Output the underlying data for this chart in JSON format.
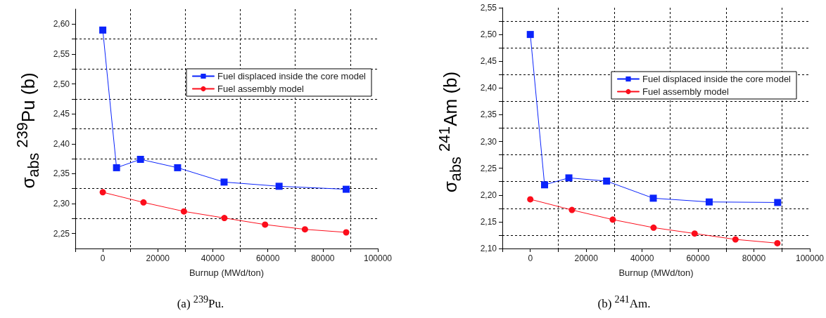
{
  "chart_data": [
    {
      "type": "line",
      "title": "(a) $^{239}$Pu.",
      "xlabel": "Burnup (MWd/ton)",
      "ylabel": "σ$_{abs}$ $^{239}$Pu (b)",
      "xlim": [
        -10000,
        100000
      ],
      "ylim": [
        2.225,
        2.625
      ],
      "xticks": [
        {
          "value": -10000,
          "label": null
        },
        0,
        {
          "value": 10000,
          "label": null
        },
        20000,
        {
          "value": 30000,
          "label": null
        },
        40000,
        {
          "value": 50000,
          "label": null
        },
        60000,
        {
          "value": 70000,
          "label": null
        },
        80000,
        {
          "value": 90000,
          "label": null
        },
        100000
      ],
      "yticks": [
        {
          "value": 2.25,
          "label": "2,25"
        },
        {
          "value": 2.275,
          "label": null
        },
        {
          "value": 2.3,
          "label": "2,30"
        },
        {
          "value": 2.325,
          "label": null
        },
        {
          "value": 2.35,
          "label": "2,35"
        },
        {
          "value": 2.375,
          "label": null
        },
        {
          "value": 2.4,
          "label": "2,40"
        },
        {
          "value": 2.425,
          "label": null
        },
        {
          "value": 2.45,
          "label": "2,45"
        },
        {
          "value": 2.475,
          "label": null
        },
        {
          "value": 2.5,
          "label": "2,50"
        },
        {
          "value": 2.525,
          "label": null
        },
        {
          "value": 2.55,
          "label": "2,55"
        },
        {
          "value": 2.575,
          "label": null
        },
        {
          "value": 2.6,
          "label": "2,60"
        }
      ],
      "grid": true,
      "legend": "top right",
      "series": [
        {
          "name": "Fuel displaced inside the core model",
          "color": "#0b24fb",
          "marker": "square",
          "x": [
            0,
            5000,
            13700,
            27200,
            44100,
            64100,
            88500
          ],
          "values": [
            2.59,
            2.36,
            2.374,
            2.36,
            2.336,
            2.329,
            2.324
          ]
        },
        {
          "name": "Fuel assembly model",
          "color": "#fc0d1b",
          "marker": "circle",
          "x": [
            0,
            14800,
            29500,
            44200,
            59000,
            73500,
            88500
          ],
          "values": [
            2.319,
            2.302,
            2.287,
            2.276,
            2.265,
            2.257,
            2.252
          ]
        }
      ]
    },
    {
      "type": "line",
      "title": "(b) $^{241}$Am.",
      "xlabel": "Burnup (MWd/ton)",
      "ylabel": "σ$_{abs}$ $^{241}$Am (b)",
      "xlim": [
        -10000,
        100000
      ],
      "ylim": [
        2.1,
        2.55
      ],
      "xticks": [
        {
          "value": -10000,
          "label": null
        },
        0,
        {
          "value": 10000,
          "label": null
        },
        20000,
        {
          "value": 30000,
          "label": null
        },
        40000,
        {
          "value": 50000,
          "label": null
        },
        60000,
        {
          "value": 70000,
          "label": null
        },
        80000,
        {
          "value": 90000,
          "label": null
        },
        100000
      ],
      "yticks": [
        {
          "value": 2.1,
          "label": "2,10"
        },
        {
          "value": 2.125,
          "label": null
        },
        {
          "value": 2.15,
          "label": "2,15"
        },
        {
          "value": 2.175,
          "label": null
        },
        {
          "value": 2.2,
          "label": "2,20"
        },
        {
          "value": 2.225,
          "label": null
        },
        {
          "value": 2.25,
          "label": "2,25"
        },
        {
          "value": 2.275,
          "label": null
        },
        {
          "value": 2.3,
          "label": "2,30"
        },
        {
          "value": 2.325,
          "label": null
        },
        {
          "value": 2.35,
          "label": "2,35"
        },
        {
          "value": 2.375,
          "label": null
        },
        {
          "value": 2.4,
          "label": "2,40"
        },
        {
          "value": 2.425,
          "label": null
        },
        {
          "value": 2.45,
          "label": "2,45"
        },
        {
          "value": 2.475,
          "label": null
        },
        {
          "value": 2.5,
          "label": "2,50"
        },
        {
          "value": 2.525,
          "label": null
        },
        {
          "value": 2.55,
          "label": "2,55"
        }
      ],
      "grid": true,
      "legend": "top right",
      "series": [
        {
          "name": "Fuel displaced inside the core model",
          "color": "#0b24fb",
          "marker": "square",
          "x": [
            0,
            5100,
            13800,
            27300,
            44000,
            64000,
            88500
          ],
          "values": [
            2.5,
            2.219,
            2.232,
            2.226,
            2.194,
            2.187,
            2.186
          ]
        },
        {
          "name": "Fuel assembly model",
          "color": "#fc0d1b",
          "marker": "circle",
          "x": [
            0,
            14900,
            29500,
            44100,
            58800,
            73400,
            88400
          ],
          "values": [
            2.192,
            2.172,
            2.154,
            2.139,
            2.128,
            2.117,
            2.11
          ]
        }
      ]
    }
  ]
}
